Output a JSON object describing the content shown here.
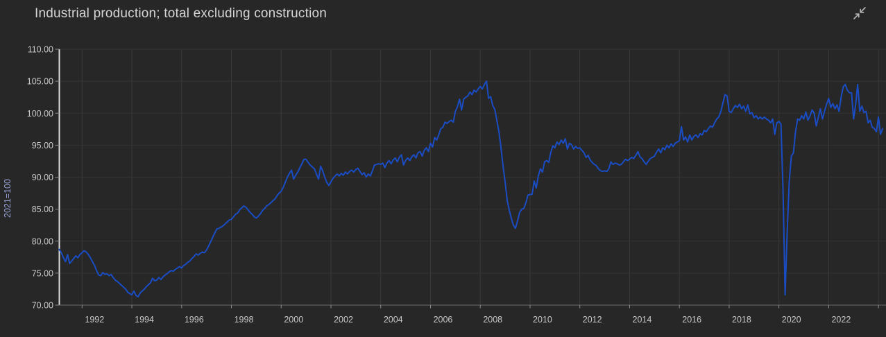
{
  "header": {
    "title": "Industrial production; total excluding construction",
    "collapse_icon": "collapse-arrows-icon"
  },
  "colors": {
    "background": "#272727",
    "line": "#1a4cc4",
    "grid_vertical": "#3a3a3a",
    "grid_horizontal": "#353535",
    "y_axis_line": "#dcdcdc",
    "x_axis_line": "#6e6e6e",
    "tick_mark": "#8c8c8c",
    "tick_label": "#c9c9c9",
    "title_text": "#d6d6d6",
    "y_axis_title_text": "#97a1d6"
  },
  "chart_data": {
    "type": "line",
    "title": "Industrial production; total excluding construction",
    "xlabel": "",
    "ylabel": "2021=100",
    "ylim": [
      70,
      110
    ],
    "ytick_values": [
      70,
      75,
      80,
      85,
      90,
      95,
      100,
      105,
      110
    ],
    "ytick_labels": [
      "70.00",
      "75.00",
      "80.00",
      "85.00",
      "90.00",
      "95.00",
      "100.00",
      "105.00",
      "110.00"
    ],
    "xtick_label_years": [
      1992,
      1994,
      1996,
      1998,
      2000,
      2002,
      2004,
      2006,
      2008,
      2010,
      2012,
      2014,
      2016,
      2018,
      2020,
      2022
    ],
    "xgrid_years": [
      1992,
      1994,
      1996,
      1998,
      2000,
      2002,
      2004,
      2006,
      2008,
      2010,
      2012,
      2014,
      2016,
      2018,
      2020,
      2022,
      2024
    ],
    "grid": true,
    "legend": "none",
    "series": [
      {
        "name": "Industrial production; total excluding construction",
        "frequency": "monthly",
        "start_year": 1991,
        "start_month": 2,
        "values": [
          78.7,
          78.2,
          77.4,
          76.8,
          77.9,
          76.5,
          76.9,
          77.3,
          77.7,
          77.4,
          77.9,
          78.2,
          78.5,
          78.3,
          77.9,
          77.4,
          76.8,
          76.2,
          75.4,
          74.7,
          74.6,
          75.1,
          74.8,
          74.9,
          74.6,
          74.8,
          74.3,
          73.9,
          73.7,
          73.4,
          73.1,
          72.8,
          72.5,
          72.0,
          71.8,
          71.6,
          72.2,
          71.5,
          71.3,
          71.9,
          72.2,
          72.5,
          72.9,
          73.2,
          73.5,
          74.2,
          73.8,
          73.9,
          74.3,
          74.0,
          74.4,
          74.7,
          74.9,
          75.2,
          75.4,
          75.3,
          75.6,
          75.8,
          76.0,
          75.8,
          76.2,
          76.4,
          76.7,
          76.9,
          77.3,
          77.6,
          78.0,
          77.8,
          78.1,
          78.3,
          78.2,
          78.6,
          79.2,
          79.9,
          80.6,
          81.3,
          81.9,
          82.0,
          82.2,
          82.4,
          82.7,
          83.0,
          83.3,
          83.4,
          83.8,
          84.2,
          84.4,
          84.9,
          85.2,
          85.5,
          85.3,
          84.9,
          84.5,
          84.2,
          83.8,
          83.6,
          83.9,
          84.3,
          84.8,
          85.1,
          85.5,
          85.7,
          86.0,
          86.3,
          86.6,
          87.1,
          87.5,
          87.8,
          88.4,
          89.2,
          90.0,
          90.6,
          91.1,
          89.7,
          90.3,
          90.8,
          91.5,
          92.1,
          92.8,
          92.8,
          92.3,
          91.9,
          91.6,
          91.3,
          90.5,
          89.7,
          91.7,
          91.0,
          90.0,
          89.2,
          88.7,
          89.3,
          89.8,
          90.2,
          90.5,
          90.2,
          90.6,
          90.3,
          90.8,
          90.5,
          90.9,
          91.1,
          90.8,
          91.2,
          91.4,
          90.9,
          90.4,
          90.7,
          90.0,
          90.5,
          90.2,
          91.0,
          91.9,
          92.0,
          92.1,
          92.0,
          92.2,
          91.5,
          92.2,
          92.6,
          92.1,
          92.7,
          93.0,
          92.4,
          93.1,
          93.5,
          91.9,
          92.6,
          93.0,
          92.6,
          93.2,
          93.5,
          93.0,
          93.8,
          94.0,
          93.3,
          94.2,
          94.6,
          94.0,
          95.3,
          94.7,
          96.2,
          95.8,
          96.6,
          97.6,
          97.8,
          98.6,
          98.4,
          98.7,
          98.9,
          98.6,
          100.3,
          101.0,
          102.2,
          100.5,
          102.2,
          102.5,
          102.7,
          103.3,
          102.9,
          103.6,
          103.3,
          103.8,
          104.2,
          103.8,
          104.5,
          105.0,
          102.3,
          102.6,
          101.2,
          100.6,
          98.9,
          97.1,
          94.6,
          91.7,
          89.2,
          86.3,
          84.8,
          83.5,
          82.5,
          82.0,
          83.2,
          84.5,
          85.0,
          85.1,
          86.0,
          87.2,
          87.3,
          87.3,
          89.4,
          88.3,
          90.2,
          91.3,
          90.8,
          92.4,
          92.6,
          92.3,
          93.9,
          94.9,
          94.6,
          95.5,
          95.1,
          95.8,
          95.3,
          96.0,
          94.4,
          95.3,
          95.1,
          94.4,
          94.8,
          94.5,
          94.6,
          94.2,
          93.8,
          93.1,
          93.4,
          92.7,
          92.3,
          92.0,
          91.8,
          91.3,
          91.0,
          90.9,
          91.0,
          90.9,
          91.3,
          92.4,
          92.0,
          92.2,
          92.1,
          91.9,
          92.0,
          92.4,
          92.8,
          92.6,
          92.8,
          93.1,
          92.9,
          93.4,
          94.0,
          93.2,
          92.9,
          92.4,
          92.0,
          92.5,
          92.9,
          93.1,
          93.3,
          93.9,
          94.4,
          93.8,
          94.6,
          94.3,
          95.0,
          94.6,
          95.2,
          94.8,
          95.3,
          95.5,
          95.7,
          97.9,
          95.8,
          96.3,
          95.5,
          96.6,
          95.8,
          96.4,
          96.6,
          96.2,
          96.8,
          96.6,
          97.3,
          97.1,
          97.6,
          98.0,
          97.8,
          98.5,
          99.1,
          99.4,
          100.3,
          101.6,
          102.9,
          102.7,
          100.3,
          100.1,
          100.7,
          101.2,
          100.9,
          101.4,
          100.7,
          101.1,
          100.3,
          101.3,
          99.9,
          100.1,
          99.3,
          99.6,
          99.1,
          99.4,
          99.1,
          99.4,
          99.1,
          98.9,
          98.5,
          99.1,
          96.7,
          98.5,
          98.7,
          98.3,
          88.0,
          71.6,
          81.5,
          89.5,
          93.3,
          93.8,
          97.1,
          99.1,
          98.9,
          99.6,
          99.1,
          100.2,
          98.9,
          99.6,
          100.5,
          100.0,
          98.0,
          99.4,
          100.7,
          99.1,
          100.3,
          101.4,
          102.3,
          100.9,
          101.5,
          100.7,
          101.3,
          100.3,
          102.5,
          104.1,
          104.5,
          103.6,
          103.2,
          103.2,
          99.1,
          101.4,
          104.5,
          100.3,
          101.1,
          100.1,
          100.3,
          98.5,
          98.9,
          97.8,
          97.6,
          97.1,
          99.4,
          96.7,
          97.6
        ]
      }
    ]
  }
}
